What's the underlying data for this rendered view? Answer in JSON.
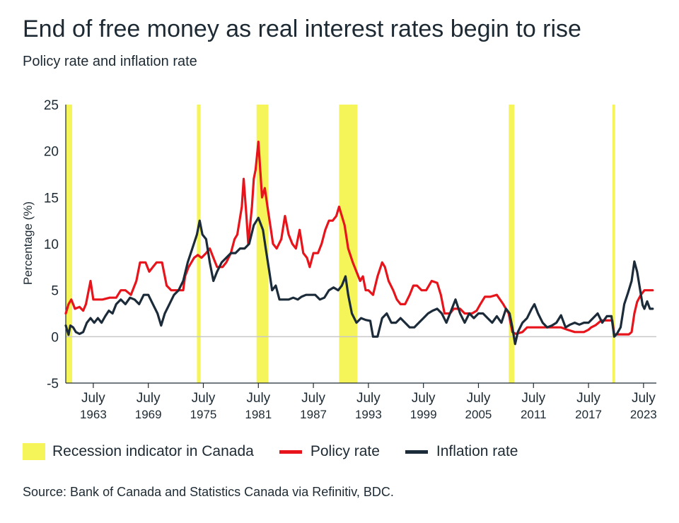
{
  "chart_data": {
    "type": "line",
    "title": "End of free money as real interest rates begin to rise",
    "subtitle": "Policy rate and inflation rate",
    "ylabel": "Percentage (%)",
    "xlabel": "",
    "ylim": [
      -5,
      25
    ],
    "xlim": [
      1960.5,
      2024.9
    ],
    "yticks": [
      -5,
      0,
      5,
      10,
      15,
      20,
      25
    ],
    "xticks": [
      {
        "x": 1963.5,
        "month": "July",
        "year": "1963"
      },
      {
        "x": 1969.5,
        "month": "July",
        "year": "1969"
      },
      {
        "x": 1975.5,
        "month": "July",
        "year": "1975"
      },
      {
        "x": 1981.5,
        "month": "July",
        "year": "1981"
      },
      {
        "x": 1987.5,
        "month": "July",
        "year": "1987"
      },
      {
        "x": 1993.5,
        "month": "July",
        "year": "1993"
      },
      {
        "x": 1999.5,
        "month": "July",
        "year": "1999"
      },
      {
        "x": 2005.5,
        "month": "July",
        "year": "2005"
      },
      {
        "x": 2011.5,
        "month": "July",
        "year": "2011"
      },
      {
        "x": 2017.5,
        "month": "July",
        "year": "2017"
      },
      {
        "x": 2023.5,
        "month": "July",
        "year": "2023"
      }
    ],
    "grid": false,
    "legend_position": "bottom",
    "recessions": [
      {
        "start": 1960.5,
        "end": 1961.2
      },
      {
        "start": 1974.8,
        "end": 1975.2
      },
      {
        "start": 1981.3,
        "end": 1982.6
      },
      {
        "start": 1990.3,
        "end": 1992.3
      },
      {
        "start": 2008.8,
        "end": 2009.4
      },
      {
        "start": 2020.1,
        "end": 2020.4
      }
    ],
    "series": [
      {
        "name": "Policy rate",
        "color": "#e8141b",
        "points": [
          [
            1960.5,
            2.5
          ],
          [
            1960.8,
            3.5
          ],
          [
            1961.1,
            4.0
          ],
          [
            1961.5,
            3.0
          ],
          [
            1962.0,
            3.2
          ],
          [
            1962.4,
            2.8
          ],
          [
            1962.7,
            3.5
          ],
          [
            1963.2,
            6.0
          ],
          [
            1963.5,
            4.0
          ],
          [
            1964.5,
            4.0
          ],
          [
            1965.3,
            4.2
          ],
          [
            1966.0,
            4.2
          ],
          [
            1966.5,
            5.0
          ],
          [
            1967.0,
            5.0
          ],
          [
            1967.6,
            4.5
          ],
          [
            1968.2,
            6.0
          ],
          [
            1968.6,
            8.0
          ],
          [
            1969.2,
            8.0
          ],
          [
            1969.6,
            7.0
          ],
          [
            1970.0,
            7.5
          ],
          [
            1970.4,
            8.0
          ],
          [
            1971.0,
            8.0
          ],
          [
            1971.5,
            5.5
          ],
          [
            1972.0,
            5.0
          ],
          [
            1972.7,
            5.0
          ],
          [
            1973.3,
            5.0
          ],
          [
            1973.5,
            6.5
          ],
          [
            1973.9,
            7.5
          ],
          [
            1974.5,
            8.5
          ],
          [
            1974.9,
            8.8
          ],
          [
            1975.3,
            8.5
          ],
          [
            1975.8,
            9.0
          ],
          [
            1976.2,
            9.5
          ],
          [
            1976.6,
            8.5
          ],
          [
            1977.0,
            7.5
          ],
          [
            1977.6,
            7.5
          ],
          [
            1978.0,
            8.0
          ],
          [
            1978.5,
            9.0
          ],
          [
            1978.9,
            10.5
          ],
          [
            1979.2,
            11.0
          ],
          [
            1979.7,
            14.0
          ],
          [
            1979.9,
            17.0
          ],
          [
            1980.2,
            13.0
          ],
          [
            1980.4,
            10.0
          ],
          [
            1980.8,
            14.0
          ],
          [
            1981.0,
            17.0
          ],
          [
            1981.2,
            18.0
          ],
          [
            1981.5,
            21.0
          ],
          [
            1981.7,
            18.0
          ],
          [
            1981.9,
            15.0
          ],
          [
            1982.2,
            16.0
          ],
          [
            1982.5,
            14.0
          ],
          [
            1982.8,
            12.0
          ],
          [
            1983.1,
            10.0
          ],
          [
            1983.5,
            9.5
          ],
          [
            1984.0,
            10.5
          ],
          [
            1984.4,
            13.0
          ],
          [
            1984.8,
            11.0
          ],
          [
            1985.2,
            10.0
          ],
          [
            1985.6,
            9.5
          ],
          [
            1986.0,
            11.5
          ],
          [
            1986.4,
            9.0
          ],
          [
            1986.8,
            8.5
          ],
          [
            1987.1,
            7.5
          ],
          [
            1987.5,
            9.0
          ],
          [
            1988.0,
            9.0
          ],
          [
            1988.4,
            10.0
          ],
          [
            1988.8,
            11.5
          ],
          [
            1989.2,
            12.5
          ],
          [
            1989.6,
            12.5
          ],
          [
            1990.0,
            13.0
          ],
          [
            1990.3,
            14.0
          ],
          [
            1990.6,
            13.0
          ],
          [
            1990.9,
            12.0
          ],
          [
            1991.3,
            9.5
          ],
          [
            1991.8,
            8.0
          ],
          [
            1992.2,
            7.0
          ],
          [
            1992.6,
            6.0
          ],
          [
            1992.9,
            6.5
          ],
          [
            1993.2,
            5.0
          ],
          [
            1993.5,
            5.0
          ],
          [
            1994.0,
            4.5
          ],
          [
            1994.5,
            6.5
          ],
          [
            1995.0,
            8.0
          ],
          [
            1995.3,
            7.5
          ],
          [
            1995.7,
            6.0
          ],
          [
            1996.2,
            5.0
          ],
          [
            1996.6,
            4.0
          ],
          [
            1997.0,
            3.5
          ],
          [
            1997.5,
            3.5
          ],
          [
            1998.0,
            4.5
          ],
          [
            1998.4,
            5.5
          ],
          [
            1998.8,
            5.5
          ],
          [
            1999.3,
            5.0
          ],
          [
            1999.8,
            5.0
          ],
          [
            2000.4,
            6.0
          ],
          [
            2001.0,
            5.8
          ],
          [
            2001.4,
            4.5
          ],
          [
            2001.8,
            2.5
          ],
          [
            2002.4,
            2.5
          ],
          [
            2002.8,
            3.0
          ],
          [
            2003.5,
            3.0
          ],
          [
            2004.0,
            2.5
          ],
          [
            2004.8,
            2.5
          ],
          [
            2005.3,
            2.8
          ],
          [
            2005.7,
            3.5
          ],
          [
            2006.2,
            4.3
          ],
          [
            2006.8,
            4.3
          ],
          [
            2007.5,
            4.5
          ],
          [
            2008.2,
            3.5
          ],
          [
            2008.8,
            2.5
          ],
          [
            2009.2,
            0.5
          ],
          [
            2009.6,
            0.3
          ],
          [
            2010.3,
            0.5
          ],
          [
            2010.8,
            1.0
          ],
          [
            2011.5,
            1.0
          ],
          [
            2012.5,
            1.0
          ],
          [
            2013.5,
            1.0
          ],
          [
            2014.5,
            1.0
          ],
          [
            2015.2,
            0.75
          ],
          [
            2016.0,
            0.5
          ],
          [
            2017.0,
            0.5
          ],
          [
            2017.5,
            0.75
          ],
          [
            2017.8,
            1.0
          ],
          [
            2018.3,
            1.25
          ],
          [
            2018.9,
            1.75
          ],
          [
            2019.5,
            1.75
          ],
          [
            2020.1,
            1.75
          ],
          [
            2020.3,
            0.25
          ],
          [
            2021.0,
            0.25
          ],
          [
            2021.9,
            0.25
          ],
          [
            2022.2,
            0.5
          ],
          [
            2022.5,
            2.5
          ],
          [
            2022.8,
            3.75
          ],
          [
            2023.2,
            4.5
          ],
          [
            2023.6,
            5.0
          ],
          [
            2024.0,
            5.0
          ],
          [
            2024.5,
            5.0
          ]
        ]
      },
      {
        "name": "Inflation rate",
        "color": "#1c2b39",
        "points": [
          [
            1960.5,
            1.2
          ],
          [
            1960.8,
            0.2
          ],
          [
            1961.0,
            1.2
          ],
          [
            1961.3,
            1.0
          ],
          [
            1961.6,
            0.5
          ],
          [
            1962.0,
            0.3
          ],
          [
            1962.4,
            0.5
          ],
          [
            1962.8,
            1.5
          ],
          [
            1963.2,
            2.0
          ],
          [
            1963.6,
            1.5
          ],
          [
            1964.0,
            2.0
          ],
          [
            1964.4,
            1.5
          ],
          [
            1964.8,
            2.2
          ],
          [
            1965.2,
            2.8
          ],
          [
            1965.6,
            2.5
          ],
          [
            1966.0,
            3.5
          ],
          [
            1966.5,
            4.0
          ],
          [
            1967.0,
            3.5
          ],
          [
            1967.5,
            4.2
          ],
          [
            1968.0,
            4.0
          ],
          [
            1968.5,
            3.5
          ],
          [
            1969.0,
            4.5
          ],
          [
            1969.5,
            4.5
          ],
          [
            1970.0,
            3.5
          ],
          [
            1970.5,
            2.5
          ],
          [
            1970.9,
            1.2
          ],
          [
            1971.3,
            2.5
          ],
          [
            1971.8,
            3.5
          ],
          [
            1972.3,
            4.5
          ],
          [
            1972.8,
            5.0
          ],
          [
            1973.3,
            6.0
          ],
          [
            1973.8,
            8.0
          ],
          [
            1974.3,
            9.5
          ],
          [
            1974.8,
            11.0
          ],
          [
            1975.1,
            12.5
          ],
          [
            1975.4,
            11.0
          ],
          [
            1975.8,
            10.5
          ],
          [
            1976.2,
            8.0
          ],
          [
            1976.6,
            6.0
          ],
          [
            1977.0,
            7.0
          ],
          [
            1977.5,
            8.0
          ],
          [
            1978.0,
            8.5
          ],
          [
            1978.5,
            9.0
          ],
          [
            1979.0,
            9.0
          ],
          [
            1979.5,
            9.5
          ],
          [
            1980.0,
            9.5
          ],
          [
            1980.5,
            10.0
          ],
          [
            1981.0,
            12.0
          ],
          [
            1981.5,
            12.8
          ],
          [
            1982.0,
            11.5
          ],
          [
            1982.3,
            9.5
          ],
          [
            1982.7,
            7.0
          ],
          [
            1983.0,
            5.0
          ],
          [
            1983.4,
            5.5
          ],
          [
            1983.8,
            4.0
          ],
          [
            1984.3,
            4.0
          ],
          [
            1984.8,
            4.0
          ],
          [
            1985.3,
            4.2
          ],
          [
            1985.8,
            4.0
          ],
          [
            1986.2,
            4.3
          ],
          [
            1986.7,
            4.5
          ],
          [
            1987.2,
            4.5
          ],
          [
            1987.7,
            4.5
          ],
          [
            1988.2,
            4.0
          ],
          [
            1988.7,
            4.2
          ],
          [
            1989.2,
            5.0
          ],
          [
            1989.7,
            5.3
          ],
          [
            1990.2,
            5.0
          ],
          [
            1990.6,
            5.5
          ],
          [
            1991.0,
            6.5
          ],
          [
            1991.3,
            4.5
          ],
          [
            1991.7,
            2.5
          ],
          [
            1992.2,
            1.5
          ],
          [
            1992.7,
            2.0
          ],
          [
            1993.2,
            1.8
          ],
          [
            1993.7,
            1.7
          ],
          [
            1994.0,
            0.0
          ],
          [
            1994.5,
            0.0
          ],
          [
            1995.0,
            2.0
          ],
          [
            1995.5,
            2.5
          ],
          [
            1996.0,
            1.5
          ],
          [
            1996.5,
            1.5
          ],
          [
            1997.0,
            2.0
          ],
          [
            1997.5,
            1.5
          ],
          [
            1998.0,
            1.0
          ],
          [
            1998.5,
            1.0
          ],
          [
            1999.0,
            1.5
          ],
          [
            1999.5,
            2.0
          ],
          [
            2000.0,
            2.5
          ],
          [
            2000.5,
            2.8
          ],
          [
            2001.0,
            3.0
          ],
          [
            2001.5,
            2.5
          ],
          [
            2002.0,
            1.5
          ],
          [
            2002.4,
            2.5
          ],
          [
            2003.0,
            4.0
          ],
          [
            2003.5,
            2.5
          ],
          [
            2004.0,
            1.5
          ],
          [
            2004.5,
            2.5
          ],
          [
            2005.0,
            2.0
          ],
          [
            2005.5,
            2.5
          ],
          [
            2006.0,
            2.5
          ],
          [
            2006.5,
            2.0
          ],
          [
            2007.0,
            1.5
          ],
          [
            2007.5,
            2.2
          ],
          [
            2008.0,
            1.5
          ],
          [
            2008.5,
            3.0
          ],
          [
            2008.9,
            2.5
          ],
          [
            2009.2,
            1.0
          ],
          [
            2009.5,
            -0.8
          ],
          [
            2009.8,
            0.5
          ],
          [
            2010.3,
            1.5
          ],
          [
            2010.8,
            2.0
          ],
          [
            2011.3,
            3.0
          ],
          [
            2011.6,
            3.5
          ],
          [
            2012.0,
            2.5
          ],
          [
            2012.5,
            1.5
          ],
          [
            2013.0,
            1.0
          ],
          [
            2013.5,
            1.2
          ],
          [
            2014.0,
            1.5
          ],
          [
            2014.5,
            2.3
          ],
          [
            2015.0,
            1.0
          ],
          [
            2015.5,
            1.3
          ],
          [
            2016.0,
            1.5
          ],
          [
            2016.5,
            1.3
          ],
          [
            2017.0,
            1.5
          ],
          [
            2017.5,
            1.5
          ],
          [
            2018.0,
            2.0
          ],
          [
            2018.5,
            2.5
          ],
          [
            2019.0,
            1.5
          ],
          [
            2019.5,
            2.2
          ],
          [
            2020.0,
            2.2
          ],
          [
            2020.3,
            0.0
          ],
          [
            2020.6,
            0.3
          ],
          [
            2021.0,
            1.0
          ],
          [
            2021.4,
            3.5
          ],
          [
            2021.8,
            4.7
          ],
          [
            2022.2,
            6.0
          ],
          [
            2022.5,
            8.1
          ],
          [
            2022.8,
            7.0
          ],
          [
            2023.1,
            5.2
          ],
          [
            2023.4,
            3.4
          ],
          [
            2023.6,
            3.0
          ],
          [
            2023.9,
            3.8
          ],
          [
            2024.2,
            3.0
          ],
          [
            2024.5,
            3.0
          ]
        ]
      }
    ],
    "legend": [
      {
        "label": "Recession indicator in Canada",
        "kind": "box",
        "color": "#f5f55a"
      },
      {
        "label": "Policy rate",
        "kind": "line",
        "color": "#e8141b"
      },
      {
        "label": "Inflation rate",
        "kind": "line",
        "color": "#1c2b39"
      }
    ],
    "source": "Source: Bank of Canada and Statistics Canada via Refinitiv, BDC."
  }
}
